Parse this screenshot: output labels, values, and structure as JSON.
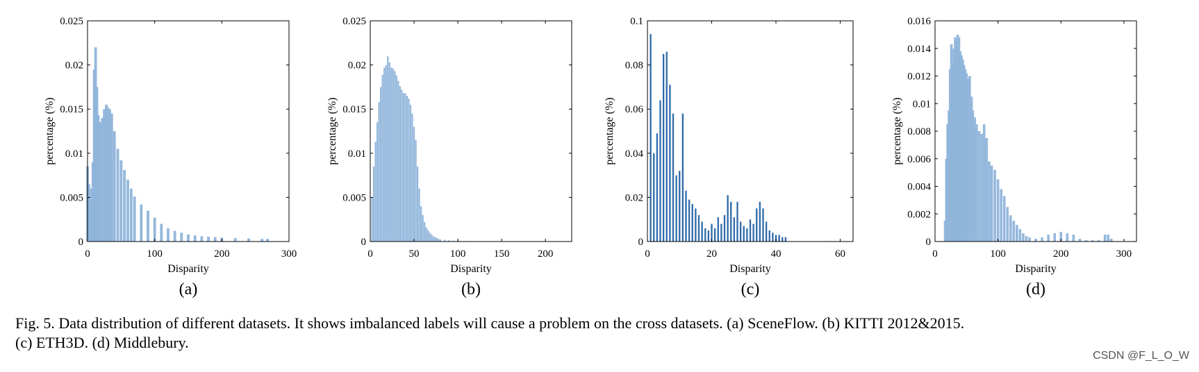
{
  "chart_data": [
    {
      "id": "a",
      "type": "bar",
      "xlabel": "Disparity",
      "ylabel": "percentage (%)",
      "sublabel": "(a)",
      "xlim": [
        0,
        300
      ],
      "ylim": [
        0,
        0.025
      ],
      "xticks": [
        0,
        100,
        200,
        300
      ],
      "yticks": [
        0,
        0.005,
        0.01,
        0.015,
        0.02,
        0.025
      ],
      "x": [
        0,
        2,
        4,
        6,
        8,
        10,
        12,
        14,
        16,
        18,
        20,
        22,
        25,
        28,
        30,
        33,
        36,
        40,
        45,
        50,
        55,
        60,
        65,
        70,
        80,
        90,
        100,
        110,
        120,
        130,
        140,
        150,
        160,
        170,
        180,
        190,
        200,
        220,
        240,
        260,
        268
      ],
      "values": [
        0.0085,
        0.0065,
        0.0045,
        0.006,
        0.009,
        0.0195,
        0.022,
        0.0175,
        0.0143,
        0.0135,
        0.0135,
        0.014,
        0.015,
        0.0155,
        0.0152,
        0.015,
        0.0145,
        0.0125,
        0.0105,
        0.0092,
        0.0081,
        0.007,
        0.006,
        0.0051,
        0.0042,
        0.0035,
        0.0027,
        0.002,
        0.0015,
        0.0012,
        0.001,
        0.0008,
        0.0007,
        0.0006,
        0.00055,
        0.0005,
        0.00045,
        0.0004,
        0.00035,
        0.0003,
        0.0003
      ]
    },
    {
      "id": "b",
      "type": "bar",
      "xlabel": "Disparity",
      "ylabel": "percentage (%)",
      "sublabel": "(b)",
      "xlim": [
        0,
        230
      ],
      "ylim": [
        0,
        0.025
      ],
      "xticks": [
        0,
        50,
        100,
        150,
        200
      ],
      "yticks": [
        0,
        0.005,
        0.01,
        0.015,
        0.02,
        0.025
      ],
      "x": [
        2,
        4,
        6,
        8,
        10,
        12,
        14,
        16,
        18,
        20,
        22,
        24,
        26,
        28,
        30,
        32,
        34,
        36,
        38,
        40,
        42,
        44,
        46,
        48,
        50,
        52,
        54,
        56,
        58,
        60,
        62,
        64,
        66,
        68,
        70,
        72,
        74,
        76,
        78,
        80,
        85,
        90,
        95,
        100,
        110,
        120
      ],
      "values": [
        0.005,
        0.0085,
        0.0113,
        0.0135,
        0.0158,
        0.0175,
        0.0189,
        0.0197,
        0.02,
        0.021,
        0.0203,
        0.0197,
        0.0196,
        0.0193,
        0.0188,
        0.0182,
        0.0176,
        0.0172,
        0.0168,
        0.0168,
        0.0165,
        0.0162,
        0.0155,
        0.0145,
        0.013,
        0.0115,
        0.0085,
        0.006,
        0.004,
        0.003,
        0.0022,
        0.0016,
        0.0013,
        0.001,
        0.0008,
        0.0006,
        0.0005,
        0.0004,
        0.0003,
        0.00025,
        0.0002,
        0.00015,
        0.0001,
        8e-05,
        5e-05,
        2e-05
      ]
    },
    {
      "id": "c",
      "type": "bar",
      "xlabel": "Disparity",
      "ylabel": "percentage (%)",
      "sublabel": "(c)",
      "xlim": [
        0,
        64
      ],
      "ylim": [
        0,
        0.1
      ],
      "xticks": [
        0,
        20,
        40,
        60
      ],
      "yticks": [
        0,
        0.02,
        0.04,
        0.06,
        0.08,
        0.1
      ],
      "x": [
        1,
        2,
        3,
        4,
        5,
        6,
        7,
        8,
        9,
        10,
        11,
        12,
        13,
        14,
        15,
        16,
        17,
        18,
        19,
        20,
        21,
        22,
        23,
        24,
        25,
        26,
        27,
        28,
        29,
        30,
        31,
        32,
        33,
        34,
        35,
        36,
        37,
        38,
        39,
        40,
        41,
        42,
        43,
        57,
        60
      ],
      "values": [
        0.094,
        0.04,
        0.049,
        0.064,
        0.085,
        0.086,
        0.071,
        0.058,
        0.03,
        0.032,
        0.058,
        0.023,
        0.019,
        0.017,
        0.015,
        0.012,
        0.009,
        0.006,
        0.005,
        0.008,
        0.006,
        0.011,
        0.008,
        0.012,
        0.021,
        0.018,
        0.011,
        0.018,
        0.009,
        0.007,
        0.006,
        0.01,
        0.008,
        0.015,
        0.018,
        0.015,
        0.009,
        0.005,
        0.004,
        0.003,
        0.003,
        0.002,
        0.002,
        0.0002,
        0.0002
      ]
    },
    {
      "id": "d",
      "type": "bar",
      "xlabel": "Disparity",
      "ylabel": "percentage (%)",
      "sublabel": "(d)",
      "xlim": [
        0,
        320
      ],
      "ylim": [
        0,
        0.016
      ],
      "xticks": [
        0,
        100,
        200,
        300
      ],
      "yticks": [
        0,
        0.002,
        0.004,
        0.006,
        0.008,
        0.01,
        0.012,
        0.014,
        0.016
      ],
      "x": [
        16,
        18,
        20,
        22,
        24,
        26,
        28,
        30,
        32,
        34,
        36,
        38,
        40,
        42,
        44,
        46,
        48,
        50,
        52,
        55,
        58,
        60,
        63,
        66,
        70,
        74,
        78,
        82,
        86,
        90,
        95,
        100,
        105,
        110,
        115,
        120,
        125,
        130,
        135,
        140,
        145,
        150,
        160,
        170,
        180,
        190,
        200,
        210,
        220,
        230,
        240,
        250,
        260,
        270,
        275,
        280
      ],
      "values": [
        0.0015,
        0.006,
        0.0085,
        0.0095,
        0.0125,
        0.0143,
        0.0128,
        0.014,
        0.0148,
        0.0145,
        0.015,
        0.0148,
        0.0138,
        0.0135,
        0.0132,
        0.0128,
        0.0125,
        0.0122,
        0.0118,
        0.012,
        0.0105,
        0.0095,
        0.009,
        0.0085,
        0.008,
        0.0078,
        0.0085,
        0.0075,
        0.0058,
        0.0055,
        0.0052,
        0.0045,
        0.0038,
        0.0033,
        0.0025,
        0.0019,
        0.0015,
        0.0012,
        0.0009,
        0.0006,
        0.0004,
        0.0003,
        0.0002,
        0.0003,
        0.0005,
        0.0006,
        0.0007,
        0.0006,
        0.0005,
        0.0002,
        0.0001,
        0.0001,
        0.0001,
        0.0005,
        0.0005,
        0.0002
      ]
    }
  ],
  "caption": {
    "line1": "Fig. 5.   Data distribution of different datasets. It shows imbalanced labels will cause a problem on the cross datasets. (a) SceneFlow. (b) KITTI 2012&2015.",
    "line2": "(c) ETH3D. (d) Middlebury."
  },
  "watermark": "CSDN @F_L_O_W",
  "colors": {
    "bar_light": "#8fb4da",
    "bar_dark": "#2e6aa9",
    "axis": "#000000"
  }
}
